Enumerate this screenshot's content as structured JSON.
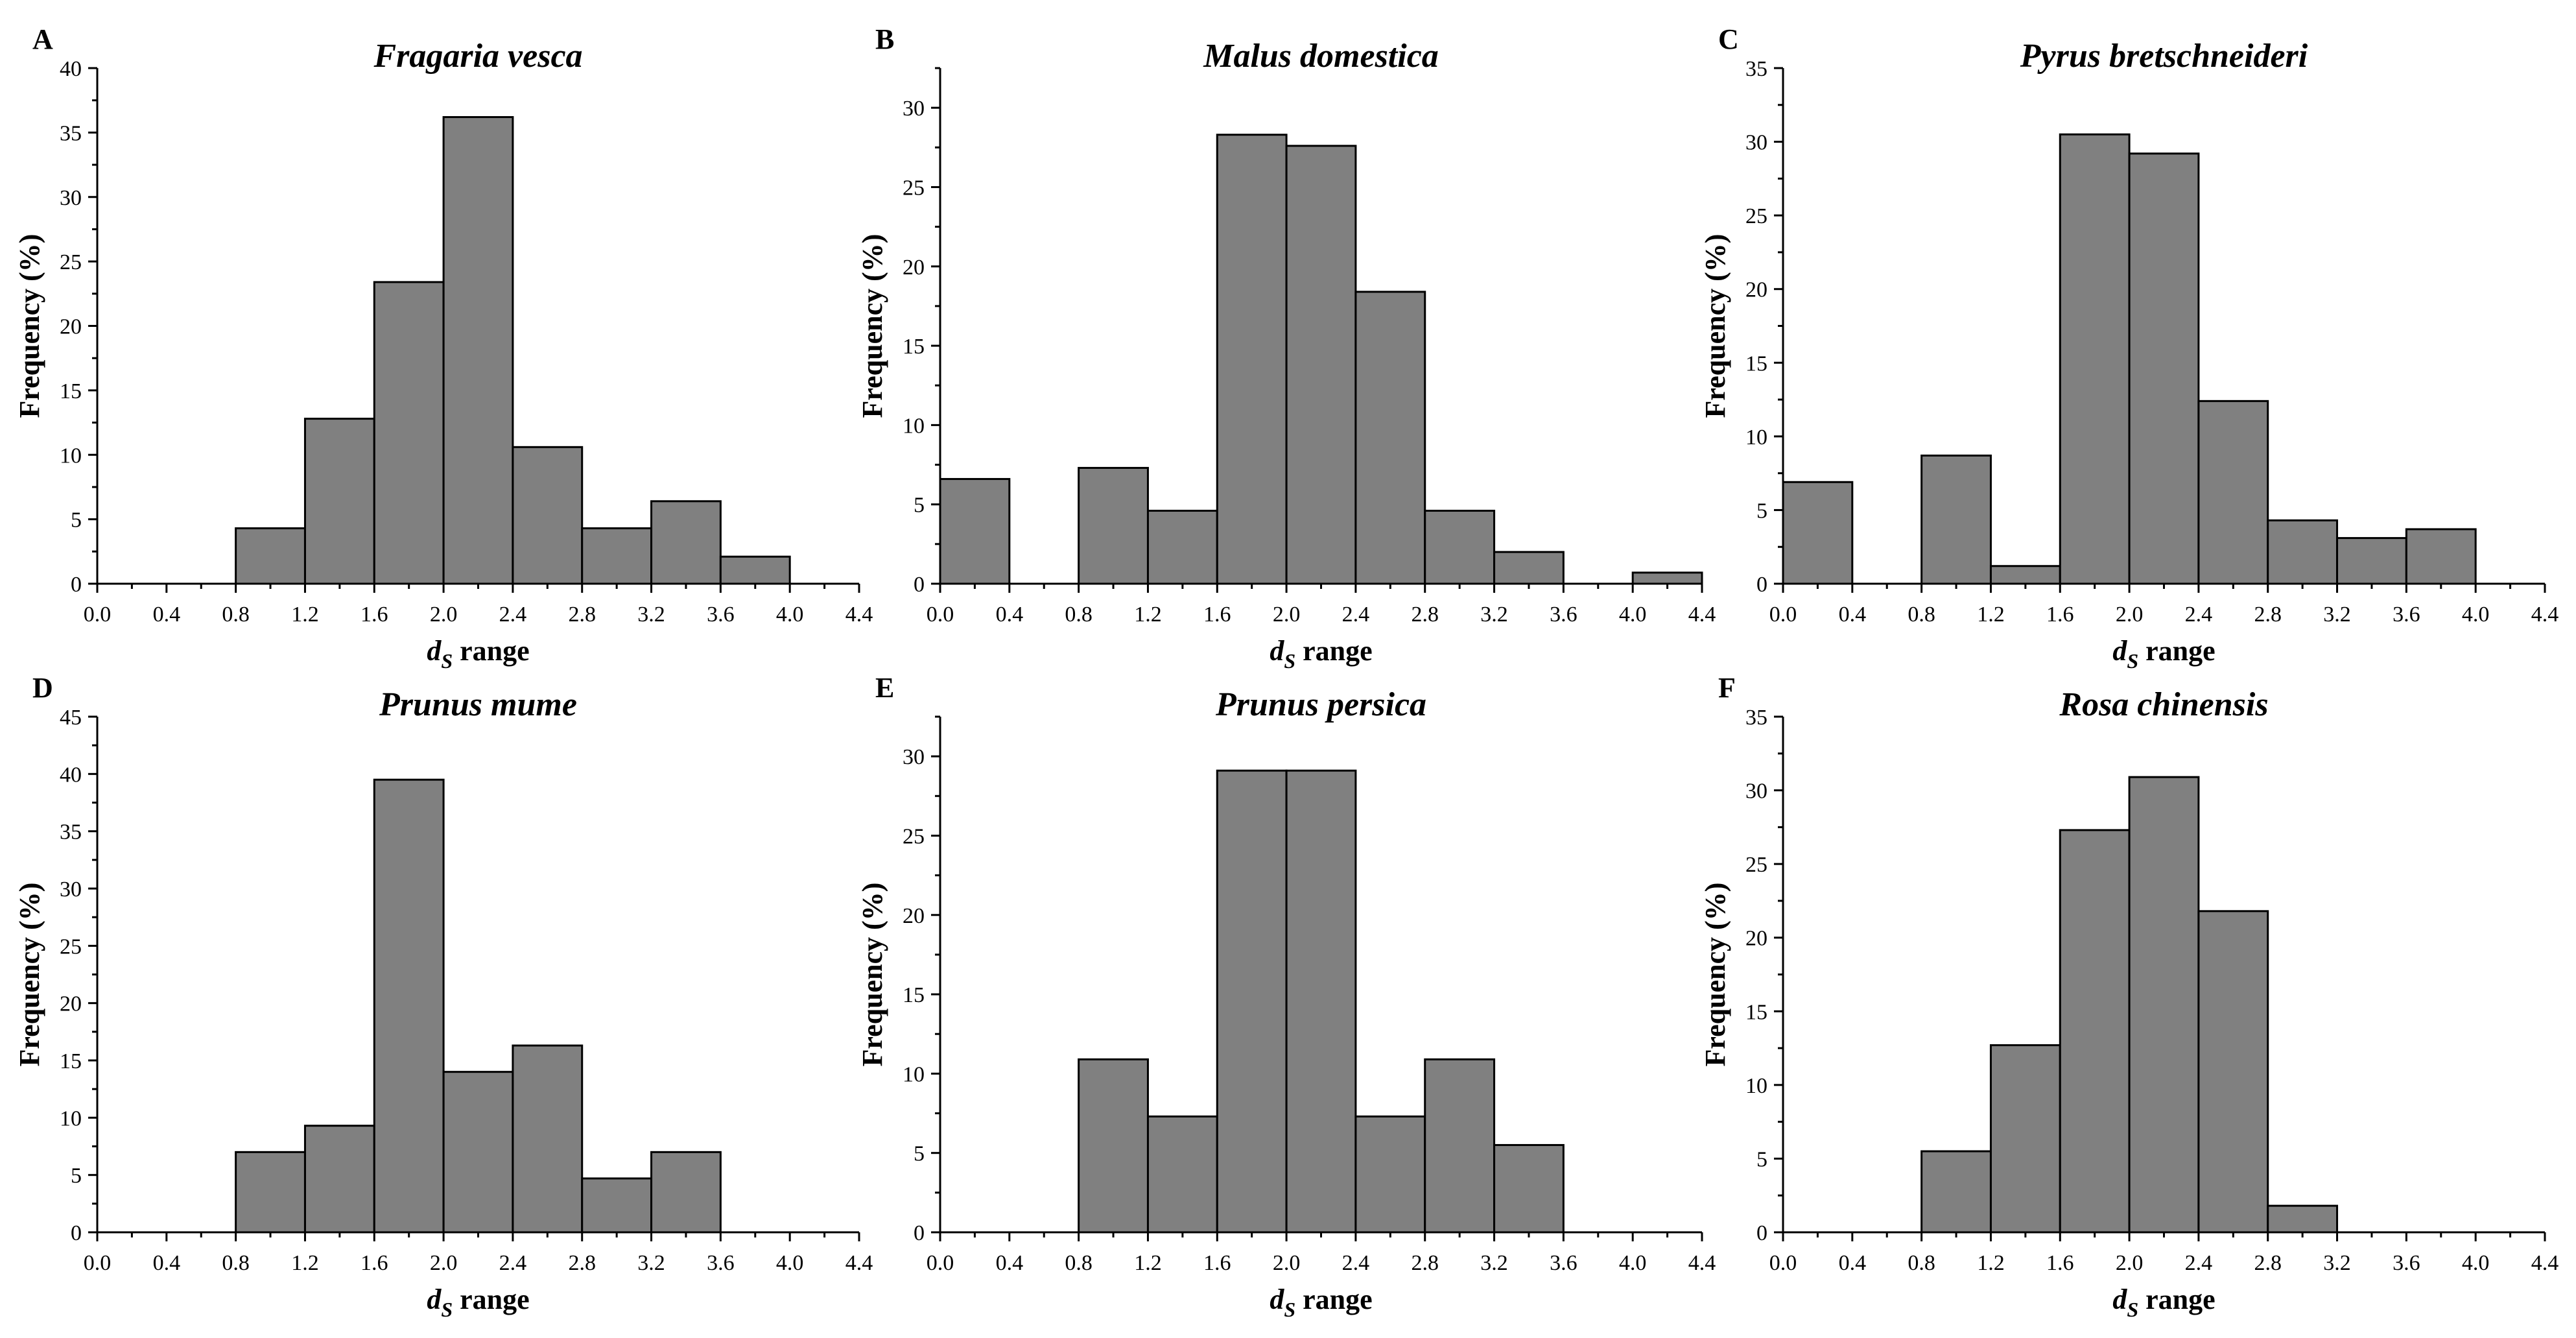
{
  "figure": {
    "x_axis_label_main": "d",
    "x_axis_label_sub": "S",
    "x_axis_label_suffix": " range",
    "y_axis_label": "Frequency (%)",
    "bar_color": "#808080",
    "edge_color": "#000000"
  },
  "chart_data": [
    {
      "panel": "A",
      "title": "Fragaria vesca",
      "type": "bar",
      "xlabel": "dS range",
      "ylabel": "Frequency (%)",
      "xlim": [
        0,
        4.4
      ],
      "ylim": [
        0,
        40
      ],
      "ymajor": 5,
      "xticks": [
        "0.0",
        "0.4",
        "0.8",
        "1.2",
        "1.6",
        "2.0",
        "2.4",
        "2.8",
        "3.2",
        "3.6",
        "4.0",
        "4.4"
      ],
      "bins": [
        {
          "from": 0.8,
          "to": 1.2,
          "value": 4.3
        },
        {
          "from": 1.2,
          "to": 1.6,
          "value": 12.8
        },
        {
          "from": 1.6,
          "to": 2.0,
          "value": 23.4
        },
        {
          "from": 2.0,
          "to": 2.4,
          "value": 36.2
        },
        {
          "from": 2.4,
          "to": 2.8,
          "value": 10.6
        },
        {
          "from": 2.8,
          "to": 3.2,
          "value": 4.3
        },
        {
          "from": 3.2,
          "to": 3.6,
          "value": 6.4
        },
        {
          "from": 3.6,
          "to": 4.0,
          "value": 2.1
        }
      ]
    },
    {
      "panel": "B",
      "title": "Malus domestica",
      "type": "bar",
      "xlabel": "dS range",
      "ylabel": "Frequency (%)",
      "xlim": [
        0,
        4.4
      ],
      "ylim": [
        0,
        32.5
      ],
      "ymajor": 5,
      "xticks": [
        "0.0",
        "0.4",
        "0.8",
        "1.2",
        "1.6",
        "2.0",
        "2.4",
        "2.8",
        "3.2",
        "3.6",
        "4.0",
        "4.4"
      ],
      "bins": [
        {
          "from": 0.0,
          "to": 0.4,
          "value": 6.6
        },
        {
          "from": 0.8,
          "to": 1.2,
          "value": 7.3
        },
        {
          "from": 1.2,
          "to": 1.6,
          "value": 4.6
        },
        {
          "from": 1.6,
          "to": 2.0,
          "value": 28.3
        },
        {
          "from": 2.0,
          "to": 2.4,
          "value": 27.6
        },
        {
          "from": 2.4,
          "to": 2.8,
          "value": 18.4
        },
        {
          "from": 2.8,
          "to": 3.2,
          "value": 4.6
        },
        {
          "from": 3.2,
          "to": 3.6,
          "value": 2.0
        },
        {
          "from": 4.0,
          "to": 4.4,
          "value": 0.7
        }
      ]
    },
    {
      "panel": "C",
      "title": "Pyrus bretschneideri",
      "type": "bar",
      "xlabel": "dS range",
      "ylabel": "Frequency (%)",
      "xlim": [
        0,
        4.4
      ],
      "ylim": [
        0,
        35
      ],
      "ymajor": 5,
      "xticks": [
        "0.0",
        "0.4",
        "0.8",
        "1.2",
        "1.6",
        "2.0",
        "2.4",
        "2.8",
        "3.2",
        "3.6",
        "4.0",
        "4.4"
      ],
      "bins": [
        {
          "from": 0.0,
          "to": 0.4,
          "value": 6.9
        },
        {
          "from": 0.8,
          "to": 1.2,
          "value": 8.7
        },
        {
          "from": 1.2,
          "to": 1.6,
          "value": 1.2
        },
        {
          "from": 1.6,
          "to": 2.0,
          "value": 30.5
        },
        {
          "from": 2.0,
          "to": 2.4,
          "value": 29.2
        },
        {
          "from": 2.4,
          "to": 2.8,
          "value": 12.4
        },
        {
          "from": 2.8,
          "to": 3.2,
          "value": 4.3
        },
        {
          "from": 3.2,
          "to": 3.6,
          "value": 3.1
        },
        {
          "from": 3.6,
          "to": 4.0,
          "value": 3.7
        }
      ]
    },
    {
      "panel": "D",
      "title": "Prunus mume",
      "type": "bar",
      "xlabel": "dS range",
      "ylabel": "Frequency (%)",
      "xlim": [
        0,
        4.4
      ],
      "ylim": [
        0,
        45
      ],
      "ymajor": 5,
      "xticks": [
        "0.0",
        "0.4",
        "0.8",
        "1.2",
        "1.6",
        "2.0",
        "2.4",
        "2.8",
        "3.2",
        "3.6",
        "4.0",
        "4.4"
      ],
      "bins": [
        {
          "from": 0.8,
          "to": 1.2,
          "value": 7.0
        },
        {
          "from": 1.2,
          "to": 1.6,
          "value": 9.3
        },
        {
          "from": 1.6,
          "to": 2.0,
          "value": 39.5
        },
        {
          "from": 2.0,
          "to": 2.4,
          "value": 14.0
        },
        {
          "from": 2.4,
          "to": 2.8,
          "value": 16.3
        },
        {
          "from": 2.8,
          "to": 3.2,
          "value": 4.7
        },
        {
          "from": 3.2,
          "to": 3.6,
          "value": 7.0
        }
      ]
    },
    {
      "panel": "E",
      "title": "Prunus persica",
      "type": "bar",
      "xlabel": "dS range",
      "ylabel": "Frequency (%)",
      "xlim": [
        0,
        4.4
      ],
      "ylim": [
        0,
        32.5
      ],
      "ymajor": 5,
      "xticks": [
        "0.0",
        "0.4",
        "0.8",
        "1.2",
        "1.6",
        "2.0",
        "2.4",
        "2.8",
        "3.2",
        "3.6",
        "4.0",
        "4.4"
      ],
      "bins": [
        {
          "from": 0.8,
          "to": 1.2,
          "value": 10.9
        },
        {
          "from": 1.2,
          "to": 1.6,
          "value": 7.3
        },
        {
          "from": 1.6,
          "to": 2.0,
          "value": 29.1
        },
        {
          "from": 2.0,
          "to": 2.4,
          "value": 29.1
        },
        {
          "from": 2.4,
          "to": 2.8,
          "value": 7.3
        },
        {
          "from": 2.8,
          "to": 3.2,
          "value": 10.9
        },
        {
          "from": 3.2,
          "to": 3.6,
          "value": 5.5
        }
      ]
    },
    {
      "panel": "F",
      "title": "Rosa chinensis",
      "type": "bar",
      "xlabel": "dS range",
      "ylabel": "Frequency (%)",
      "xlim": [
        0,
        4.4
      ],
      "ylim": [
        0,
        35
      ],
      "ymajor": 5,
      "xticks": [
        "0.0",
        "0.4",
        "0.8",
        "1.2",
        "1.6",
        "2.0",
        "2.4",
        "2.8",
        "3.2",
        "3.6",
        "4.0",
        "4.4"
      ],
      "bins": [
        {
          "from": 0.8,
          "to": 1.2,
          "value": 5.5
        },
        {
          "from": 1.2,
          "to": 1.6,
          "value": 12.7
        },
        {
          "from": 1.6,
          "to": 2.0,
          "value": 27.3
        },
        {
          "from": 2.0,
          "to": 2.4,
          "value": 30.9
        },
        {
          "from": 2.4,
          "to": 2.8,
          "value": 21.8
        },
        {
          "from": 2.8,
          "to": 3.2,
          "value": 1.8
        }
      ]
    }
  ]
}
